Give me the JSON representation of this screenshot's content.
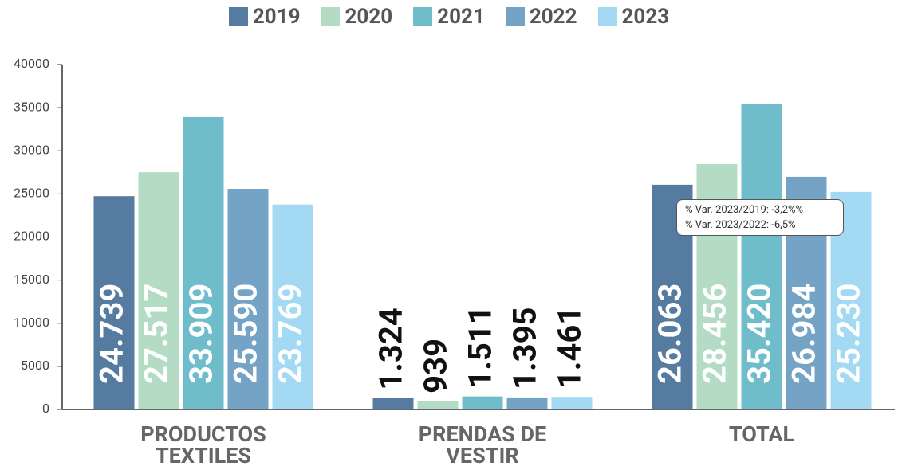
{
  "chart_data": {
    "type": "bar",
    "categories": [
      "PRODUCTOS TEXTILES",
      "PRENDAS DE VESTIR",
      "TOTAL"
    ],
    "series": [
      {
        "name": "2019",
        "color": "#557ba0",
        "values": [
          24739,
          1324,
          26063
        ],
        "value_labels": [
          "24.739",
          "1.324",
          "26.063"
        ]
      },
      {
        "name": "2020",
        "color": "#b4dcc4",
        "values": [
          27517,
          939,
          28456
        ],
        "value_labels": [
          "27.517",
          "939",
          "28.456"
        ]
      },
      {
        "name": "2021",
        "color": "#6fbccb",
        "values": [
          33909,
          1511,
          35420
        ],
        "value_labels": [
          "33.909",
          "1.511",
          "35.420"
        ]
      },
      {
        "name": "2022",
        "color": "#74a3c6",
        "values": [
          25590,
          1395,
          26984
        ],
        "value_labels": [
          "25.590",
          "1.395",
          "26.984"
        ]
      },
      {
        "name": "2023",
        "color": "#a3d9f2",
        "values": [
          23769,
          1461,
          25230
        ],
        "value_labels": [
          "23.769",
          "1.461",
          "25.230"
        ]
      }
    ],
    "annotations": [
      "% Var. 2023/2019: -3,2%%",
      "% Var. 2023/2022: -6,5%"
    ],
    "ylim": [
      0,
      40000
    ],
    "yticks": [
      0,
      5000,
      10000,
      15000,
      20000,
      25000,
      30000,
      35000,
      40000
    ],
    "legend": "top"
  }
}
